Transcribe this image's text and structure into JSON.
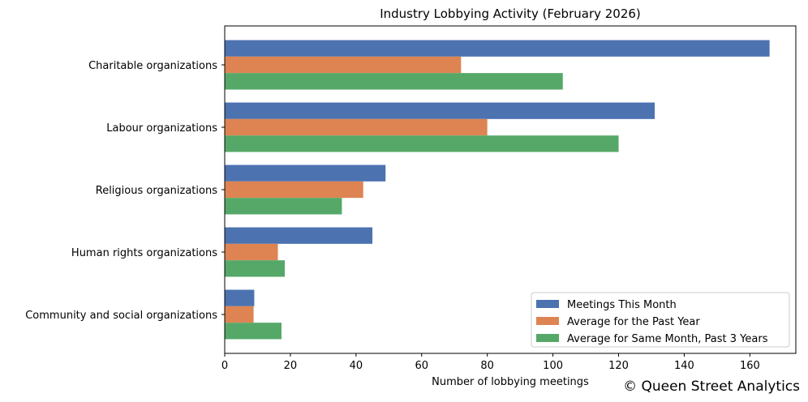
{
  "chart_data": {
    "type": "bar",
    "orientation": "horizontal",
    "title": "Industry Lobbying Activity (February 2026)",
    "xlabel": "Number of lobbying meetings",
    "ylabel": "",
    "categories": [
      "Charitable organizations",
      "Labour organizations",
      "Religious organizations",
      "Human rights organizations",
      "Community and social organizations"
    ],
    "series": [
      {
        "name": "Meetings This Month",
        "color": "#4c72b0",
        "values": [
          166,
          131,
          49,
          45,
          9
        ]
      },
      {
        "name": "Average for the Past Year",
        "color": "#dd8452",
        "values": [
          72,
          80,
          42.2,
          16.2,
          8.8
        ]
      },
      {
        "name": "Average for Same Month, Past 3 Years",
        "color": "#55a868",
        "values": [
          103,
          120,
          35.7,
          18.3,
          17.3
        ]
      }
    ],
    "xlim": [
      0,
      174
    ],
    "xticks": [
      0,
      20,
      40,
      60,
      80,
      100,
      120,
      140,
      160
    ],
    "legend_position": "lower-right",
    "grid": false
  },
  "watermark": "© Queen Street Analytics"
}
